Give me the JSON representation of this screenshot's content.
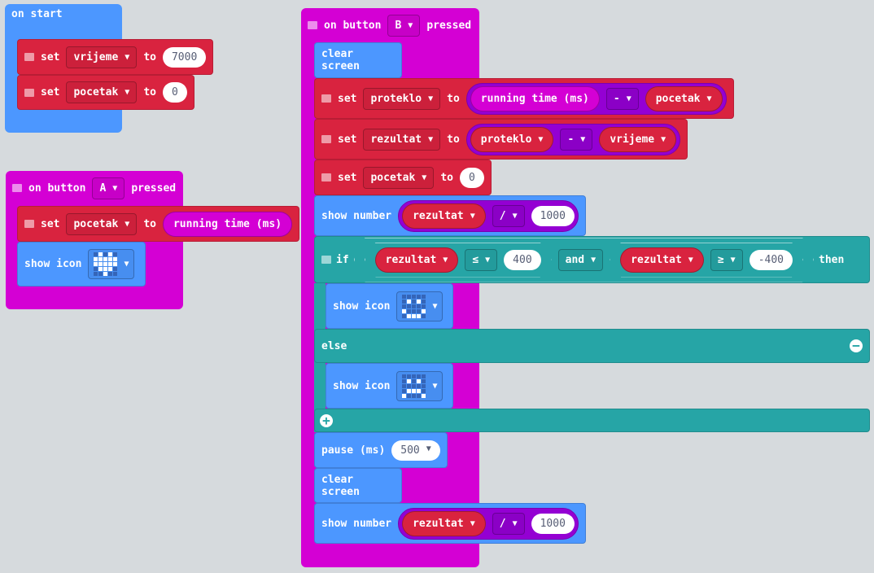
{
  "colors": {
    "events": "#d400d4",
    "basic": "#4c97ff",
    "variables": "#d9233f",
    "logic": "#26a5a6",
    "math": "#9400d3",
    "background": "#eceff1"
  },
  "on_start": {
    "label": "on start",
    "rows": [
      {
        "set": "set",
        "var": "vrijeme",
        "to": "to",
        "value": "7000"
      },
      {
        "set": "set",
        "var": "pocetak",
        "to": "to",
        "value": "0"
      }
    ]
  },
  "button_a": {
    "on": "on button",
    "button": "A",
    "pressed": "pressed",
    "set": {
      "set": "set",
      "var": "pocetak",
      "to": "to",
      "value": "running time (ms)"
    },
    "show_icon": {
      "label": "show icon",
      "icon": "heart",
      "pixels": "0101011111111110111000100"
    }
  },
  "button_b": {
    "on": "on button",
    "button": "B",
    "pressed": "pressed",
    "clear1": "clear screen",
    "set1": {
      "set": "set",
      "var": "proteklo",
      "to": "to",
      "left": "running time (ms)",
      "op": "-",
      "right": "pocetak"
    },
    "set2": {
      "set": "set",
      "var": "rezultat",
      "to": "to",
      "left": "proteklo",
      "op": "-",
      "right": "vrijeme"
    },
    "set3": {
      "set": "set",
      "var": "pocetak",
      "to": "to",
      "value": "0"
    },
    "show1": {
      "label": "show number",
      "var": "rezultat",
      "op": "/",
      "value": "1000"
    },
    "if": {
      "if": "if",
      "left_var": "rezultat",
      "left_op": "≤",
      "left_val": "400",
      "and": "and",
      "right_var": "rezultat",
      "right_op": "≥",
      "right_val": "-400",
      "then": "then",
      "else": "else"
    },
    "icon_then": {
      "label": "show icon",
      "icon": "happy",
      "pixels": "0000001010000001000101110"
    },
    "icon_else": {
      "label": "show icon",
      "icon": "sad",
      "pixels": "0000001010000000111010001"
    },
    "pause": {
      "label": "pause (ms)",
      "value": "500"
    },
    "clear2": "clear screen",
    "show2": {
      "label": "show number",
      "var": "rezultat",
      "op": "/",
      "value": "1000"
    }
  }
}
